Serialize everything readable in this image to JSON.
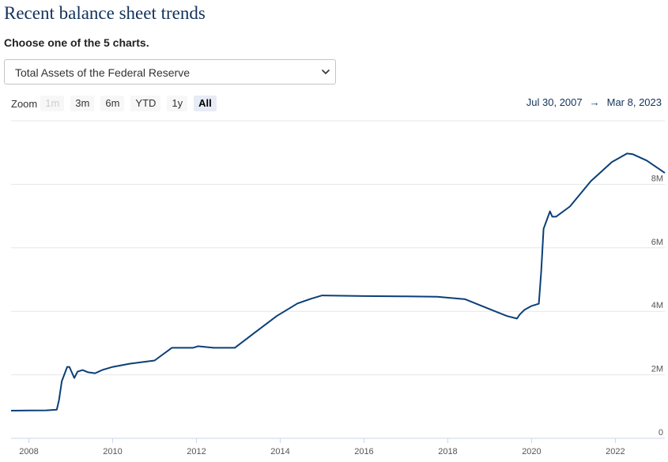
{
  "page": {
    "title": "Recent balance sheet trends",
    "subtitle": "Choose one of the 5 charts."
  },
  "selector": {
    "selected": "Total Assets of the Federal Reserve",
    "chevron_icon": "chevron-down-icon"
  },
  "zoom": {
    "label": "Zoom",
    "buttons": [
      {
        "label": "1m",
        "state": "disabled"
      },
      {
        "label": "3m",
        "state": "normal"
      },
      {
        "label": "6m",
        "state": "normal"
      },
      {
        "label": "YTD",
        "state": "normal"
      },
      {
        "label": "1y",
        "state": "normal"
      },
      {
        "label": "All",
        "state": "active"
      }
    ]
  },
  "range": {
    "from": "Jul 30, 2007",
    "arrow": "→",
    "to": "Mar 8, 2023"
  },
  "colors": {
    "line": "#0a3f78",
    "title": "#12335a",
    "grid": "#e6e6e6"
  },
  "chart_data": {
    "type": "line",
    "title": "Total Assets of the Federal Reserve",
    "xlabel": "",
    "ylabel": "",
    "x_ticks": [
      "2008",
      "2010",
      "2012",
      "2014",
      "2016",
      "2018",
      "2020",
      "2022"
    ],
    "y_ticks": [
      "0",
      "2M",
      "4M",
      "6M",
      "8M"
    ],
    "xlim": [
      "2007-07-30",
      "2023-03-08"
    ],
    "ylim": [
      0,
      10000000
    ],
    "grid": true,
    "series": [
      {
        "name": "",
        "x": [
          "2007-07-30",
          "2008-01-01",
          "2008-06-01",
          "2008-09-01",
          "2008-09-20",
          "2008-10-15",
          "2008-12-01",
          "2008-12-20",
          "2009-02-01",
          "2009-03-01",
          "2009-04-15",
          "2009-06-01",
          "2009-08-01",
          "2009-10-01",
          "2010-01-01",
          "2010-06-01",
          "2011-01-01",
          "2011-06-01",
          "2011-12-01",
          "2012-01-15",
          "2012-06-01",
          "2012-12-01",
          "2013-06-01",
          "2013-12-01",
          "2014-06-01",
          "2014-10-01",
          "2015-01-01",
          "2016-01-01",
          "2017-01-01",
          "2017-10-01",
          "2018-06-01",
          "2019-01-01",
          "2019-06-01",
          "2019-08-26",
          "2019-09-20",
          "2019-11-01",
          "2020-01-01",
          "2020-03-04",
          "2020-03-25",
          "2020-04-15",
          "2020-06-10",
          "2020-06-30",
          "2020-08-01",
          "2020-12-01",
          "2021-06-01",
          "2021-12-01",
          "2022-04-13",
          "2022-06-01",
          "2022-10-01",
          "2023-03-08"
        ],
        "y": [
          870000,
          875000,
          880000,
          900000,
          1200000,
          1800000,
          2250000,
          2250000,
          1900000,
          2100000,
          2150000,
          2080000,
          2050000,
          2150000,
          2250000,
          2350000,
          2450000,
          2850000,
          2850000,
          2900000,
          2850000,
          2850000,
          3350000,
          3850000,
          4250000,
          4400000,
          4500000,
          4480000,
          4470000,
          4460000,
          4380000,
          4070000,
          3850000,
          3770000,
          3900000,
          4050000,
          4170000,
          4240000,
          5250000,
          6600000,
          7150000,
          6980000,
          6980000,
          7300000,
          8100000,
          8700000,
          8970000,
          8950000,
          8750000,
          8360000
        ]
      }
    ]
  }
}
